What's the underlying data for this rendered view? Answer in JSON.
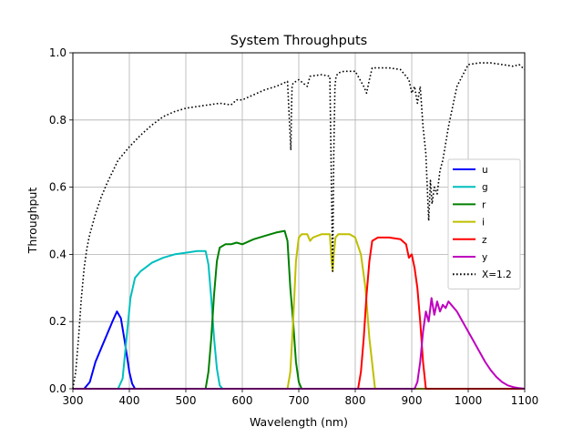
{
  "chart_data": {
    "type": "line",
    "title": "System Throughputs",
    "xlabel": "Wavelength (nm)",
    "ylabel": "Throughput",
    "xlim": [
      300,
      1100
    ],
    "ylim": [
      0,
      1.0
    ],
    "xticks": [
      300,
      400,
      500,
      600,
      700,
      800,
      900,
      1000,
      1100
    ],
    "xtick_labels": [
      "300",
      "400",
      "500",
      "600",
      "700",
      "800",
      "900",
      "1000",
      "1100"
    ],
    "yticks": [
      0,
      0.2,
      0.4,
      0.6,
      0.8,
      1.0
    ],
    "ytick_labels": [
      "0.0",
      "0.2",
      "0.4",
      "0.6",
      "0.8",
      "1.0"
    ],
    "grid": true,
    "legend_position": "center-right",
    "series": [
      {
        "name": "u",
        "color": "#0000ff",
        "style": "solid",
        "x": [
          300,
          320,
          330,
          340,
          350,
          360,
          370,
          378,
          385,
          392,
          400,
          405,
          410,
          415,
          1100
        ],
        "y": [
          0,
          0,
          0.02,
          0.08,
          0.12,
          0.16,
          0.2,
          0.23,
          0.21,
          0.14,
          0.05,
          0.015,
          0,
          0,
          0
        ]
      },
      {
        "name": "g",
        "color": "#00bfbf",
        "style": "solid",
        "x": [
          300,
          380,
          388,
          395,
          402,
          410,
          420,
          440,
          460,
          480,
          500,
          520,
          535,
          540,
          545,
          550,
          555,
          560,
          565,
          1100
        ],
        "y": [
          0,
          0,
          0.03,
          0.15,
          0.27,
          0.33,
          0.35,
          0.375,
          0.39,
          0.4,
          0.405,
          0.41,
          0.41,
          0.37,
          0.27,
          0.15,
          0.06,
          0.01,
          0,
          0
        ]
      },
      {
        "name": "r",
        "color": "#008000",
        "style": "solid",
        "x": [
          300,
          535,
          540,
          545,
          550,
          555,
          560,
          570,
          580,
          590,
          600,
          620,
          640,
          660,
          675,
          680,
          685,
          690,
          695,
          700,
          705,
          1100
        ],
        "y": [
          0,
          0,
          0.05,
          0.15,
          0.28,
          0.38,
          0.42,
          0.43,
          0.43,
          0.435,
          0.43,
          0.445,
          0.455,
          0.465,
          0.47,
          0.44,
          0.3,
          0.2,
          0.08,
          0.02,
          0,
          0
        ]
      },
      {
        "name": "i",
        "color": "#bfbf00",
        "style": "solid",
        "x": [
          300,
          680,
          685,
          690,
          695,
          700,
          705,
          715,
          720,
          725,
          740,
          755,
          758,
          760,
          762,
          765,
          770,
          790,
          800,
          810,
          818,
          825,
          835,
          1100
        ],
        "y": [
          0,
          0,
          0.05,
          0.2,
          0.38,
          0.45,
          0.46,
          0.46,
          0.44,
          0.45,
          0.46,
          0.46,
          0.38,
          0.35,
          0.4,
          0.45,
          0.46,
          0.46,
          0.45,
          0.4,
          0.3,
          0.15,
          0,
          0
        ]
      },
      {
        "name": "z",
        "color": "#ff0000",
        "style": "solid",
        "x": [
          300,
          805,
          810,
          815,
          820,
          825,
          830,
          840,
          860,
          880,
          890,
          895,
          900,
          905,
          910,
          915,
          920,
          925,
          1100
        ],
        "y": [
          0,
          0,
          0.05,
          0.15,
          0.28,
          0.38,
          0.44,
          0.45,
          0.45,
          0.445,
          0.43,
          0.39,
          0.4,
          0.36,
          0.3,
          0.2,
          0.08,
          0,
          0
        ]
      },
      {
        "name": "y",
        "color": "#bf00bf",
        "style": "solid",
        "x": [
          300,
          905,
          910,
          915,
          920,
          925,
          930,
          935,
          940,
          945,
          950,
          955,
          960,
          965,
          970,
          980,
          990,
          1000,
          1010,
          1020,
          1030,
          1040,
          1050,
          1060,
          1070,
          1080,
          1090,
          1100
        ],
        "y": [
          0,
          0,
          0.02,
          0.08,
          0.17,
          0.23,
          0.2,
          0.27,
          0.22,
          0.26,
          0.23,
          0.25,
          0.24,
          0.26,
          0.25,
          0.23,
          0.2,
          0.17,
          0.14,
          0.11,
          0.08,
          0.055,
          0.035,
          0.02,
          0.01,
          0.005,
          0.002,
          0
        ]
      },
      {
        "name": "X=1.2",
        "color": "#000000",
        "style": "dotted",
        "x": [
          300,
          305,
          310,
          315,
          320,
          325,
          330,
          340,
          350,
          360,
          370,
          380,
          400,
          420,
          440,
          460,
          480,
          500,
          520,
          540,
          560,
          580,
          590,
          600,
          620,
          640,
          660,
          680,
          686,
          687,
          688,
          690,
          700,
          715,
          720,
          740,
          755,
          760,
          762,
          764,
          766,
          770,
          780,
          800,
          815,
          820,
          825,
          830,
          840,
          860,
          880,
          895,
          900,
          905,
          910,
          915,
          920,
          925,
          930,
          933,
          936,
          940,
          945,
          950,
          955,
          960,
          965,
          970,
          980,
          1000,
          1020,
          1040,
          1060,
          1080,
          1090,
          1100
        ],
        "y": [
          0,
          0.05,
          0.15,
          0.27,
          0.36,
          0.42,
          0.46,
          0.52,
          0.57,
          0.61,
          0.645,
          0.68,
          0.72,
          0.755,
          0.785,
          0.81,
          0.825,
          0.835,
          0.84,
          0.845,
          0.85,
          0.845,
          0.86,
          0.86,
          0.875,
          0.89,
          0.9,
          0.915,
          0.71,
          0.82,
          0.9,
          0.91,
          0.92,
          0.9,
          0.93,
          0.935,
          0.93,
          0.35,
          0.7,
          0.9,
          0.93,
          0.94,
          0.945,
          0.945,
          0.9,
          0.88,
          0.92,
          0.955,
          0.955,
          0.955,
          0.95,
          0.92,
          0.88,
          0.9,
          0.85,
          0.9,
          0.78,
          0.7,
          0.5,
          0.62,
          0.55,
          0.6,
          0.58,
          0.65,
          0.68,
          0.73,
          0.78,
          0.82,
          0.9,
          0.965,
          0.97,
          0.97,
          0.965,
          0.96,
          0.965,
          0.95
        ]
      }
    ]
  }
}
